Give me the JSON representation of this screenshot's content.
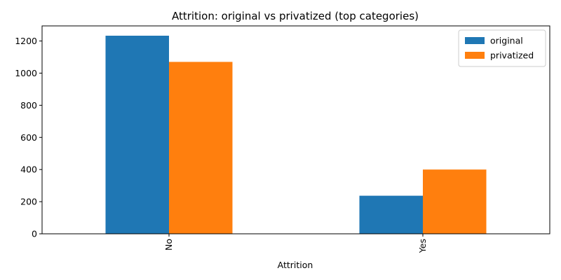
{
  "chart_data": {
    "type": "bar",
    "title": "Attrition: original vs privatized (top categories)",
    "xlabel": "Attrition",
    "ylabel": "",
    "categories": [
      "No",
      "Yes"
    ],
    "series": [
      {
        "name": "original",
        "values": [
          1233,
          237
        ],
        "color": "#1f77b4"
      },
      {
        "name": "privatized",
        "values": [
          1070,
          400
        ],
        "color": "#ff7f0e"
      }
    ],
    "ylim": [
      0,
      1294
    ],
    "yticks": [
      0,
      200,
      400,
      600,
      800,
      1000,
      1200
    ],
    "grid": false,
    "legend_position": "top-right"
  }
}
